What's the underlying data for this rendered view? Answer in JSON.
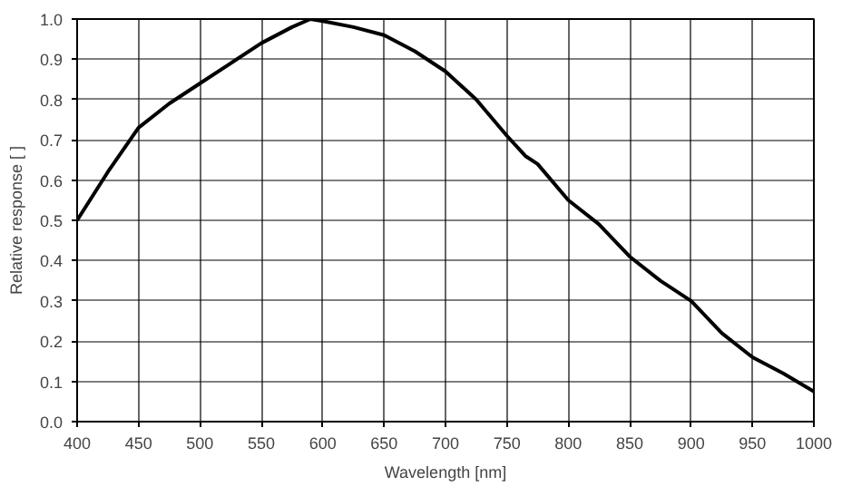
{
  "chart_data": {
    "type": "line",
    "xlabel": "Wavelength [nm]",
    "ylabel": "Relative response [ ]",
    "x": [
      400,
      425,
      450,
      475,
      500,
      525,
      550,
      575,
      590,
      600,
      625,
      650,
      675,
      700,
      725,
      750,
      765,
      775,
      800,
      825,
      850,
      875,
      900,
      925,
      950,
      975,
      1000
    ],
    "series": [
      {
        "color": "#000000",
        "values": [
          0.5,
          0.62,
          0.73,
          0.79,
          0.84,
          0.89,
          0.94,
          0.98,
          1.0,
          0.995,
          0.98,
          0.96,
          0.92,
          0.87,
          0.8,
          0.71,
          0.66,
          0.64,
          0.55,
          0.49,
          0.41,
          0.35,
          0.3,
          0.22,
          0.16,
          0.12,
          0.075
        ]
      }
    ],
    "xlim": [
      400,
      1000
    ],
    "ylim": [
      0,
      1
    ],
    "xticks": [
      400,
      450,
      500,
      550,
      600,
      650,
      700,
      750,
      800,
      850,
      900,
      950,
      1000
    ],
    "yticks": [
      {
        "value": 0,
        "label": "0.0"
      },
      0.1,
      0.2,
      0.3,
      0.4,
      0.5,
      0.6,
      0.7,
      0.8,
      0.9,
      {
        "value": 1,
        "label": "1.0"
      }
    ],
    "grid": true,
    "line_style": "solid"
  }
}
